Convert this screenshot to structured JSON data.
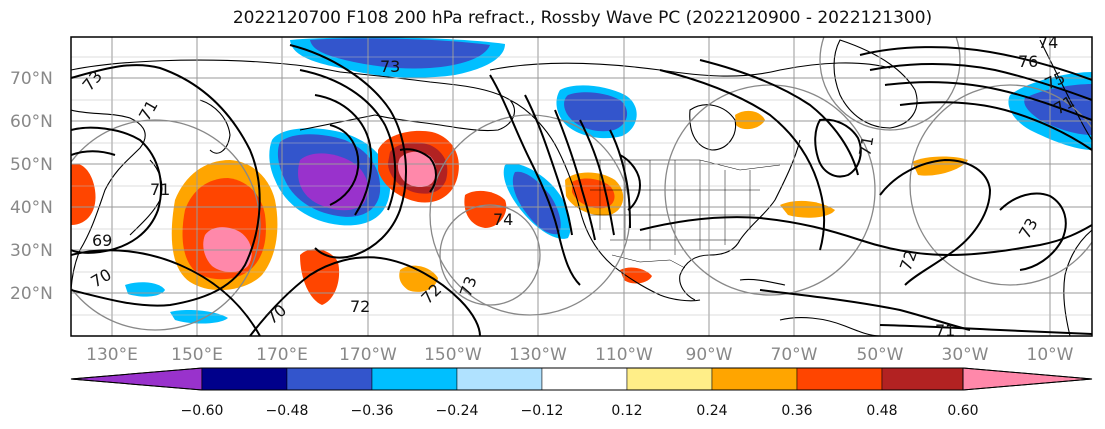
{
  "title": "2022120700 F108 200 hPa refract., Rossby Wave PC (2022120900 - 2022121300)",
  "map": {
    "lat_labels": [
      "70°N",
      "60°N",
      "50°N",
      "40°N",
      "30°N",
      "20°N"
    ],
    "lon_labels": [
      "130°E",
      "150°E",
      "170°E",
      "170°W",
      "150°W",
      "130°W",
      "110°W",
      "90°W",
      "70°W",
      "50°W",
      "30°W",
      "10°W"
    ],
    "contour_labels": [
      "73",
      "73",
      "71",
      "71",
      "69",
      "70",
      "70",
      "73",
      "72",
      "74",
      "76",
      "75",
      "71",
      "72",
      "73",
      "71",
      "71",
      "74",
      "72"
    ],
    "shading_colors": {
      "purple": "#9932CC",
      "navy": "#00008B",
      "blue": "#3355CC",
      "cyan": "#00BFFF",
      "lightblue": "#B0E2FF",
      "yellow": "#FFEE88",
      "orange": "#FFA500",
      "redorange": "#FF4500",
      "brick": "#B22222",
      "pink": "#FF88AA"
    }
  },
  "colorbar": {
    "colors": [
      "#9932CC",
      "#00008B",
      "#3355CC",
      "#00BFFF",
      "#B0E2FF",
      "#FFFFFF",
      "#FFEE88",
      "#FFA500",
      "#FF4500",
      "#B22222",
      "#FF88AA"
    ],
    "tick_labels": [
      "−0.60",
      "−0.48",
      "−0.36",
      "−0.24",
      "−0.12",
      "0.12",
      "0.24",
      "0.36",
      "0.48",
      "0.60"
    ]
  }
}
